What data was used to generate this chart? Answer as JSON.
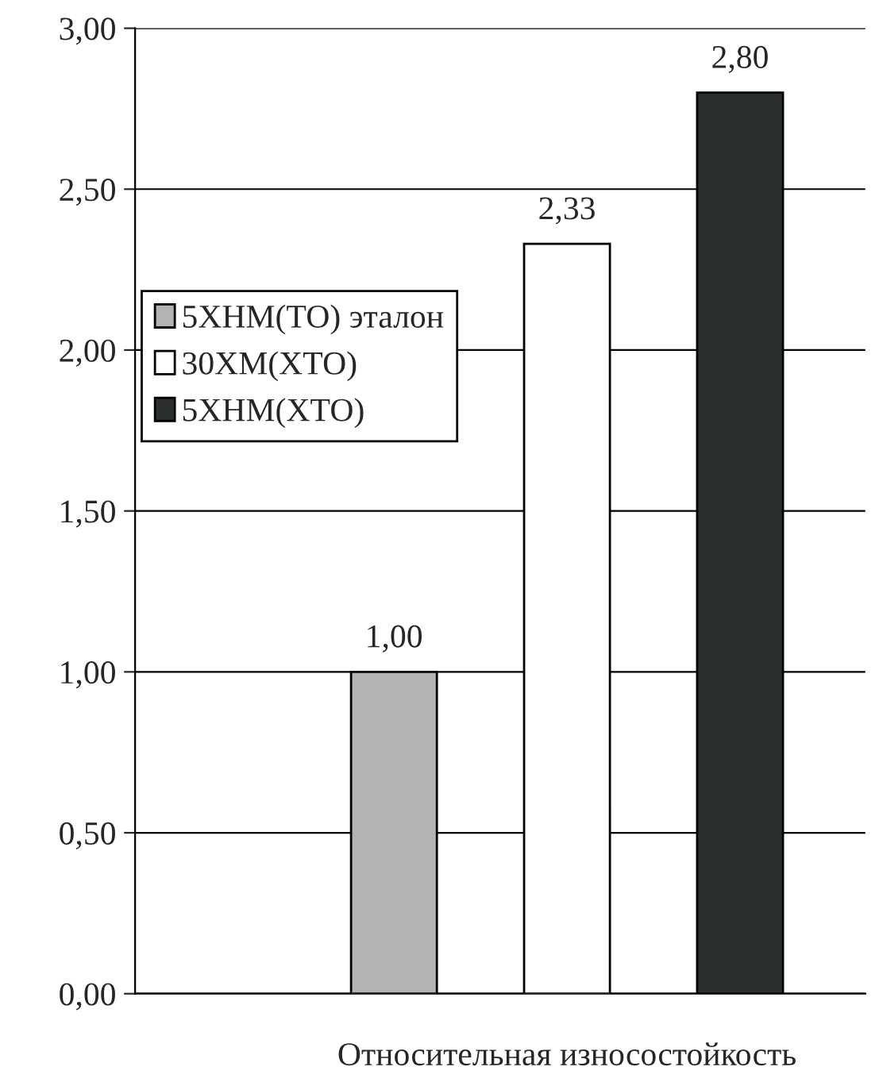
{
  "chart_data": {
    "type": "bar",
    "categories": [
      "Относительная износостойкость"
    ],
    "series": [
      {
        "name": "5ХНМ(ТО) эталон",
        "color": "#b3b3b3",
        "values": [
          1.0
        ],
        "value_labels": [
          "1,00"
        ]
      },
      {
        "name": "30ХМ(ХТО)",
        "color": "#ffffff",
        "values": [
          2.33
        ],
        "value_labels": [
          "2,33"
        ]
      },
      {
        "name": "5ХНМ(ХТО)",
        "color": "#2b2f30",
        "values": [
          2.8
        ],
        "value_labels": [
          "2,80"
        ]
      }
    ],
    "ylim": [
      0,
      3
    ],
    "yticks": [
      {
        "value": 0,
        "label": "0,00"
      },
      {
        "value": 0.5,
        "label": "0,50"
      },
      {
        "value": 1,
        "label": "1,00"
      },
      {
        "value": 1.5,
        "label": "1,50"
      },
      {
        "value": 2,
        "label": "2,00"
      },
      {
        "value": 2.5,
        "label": "2,50"
      },
      {
        "value": 3,
        "label": "3,00"
      }
    ],
    "grid": "y",
    "legend": "center left"
  }
}
